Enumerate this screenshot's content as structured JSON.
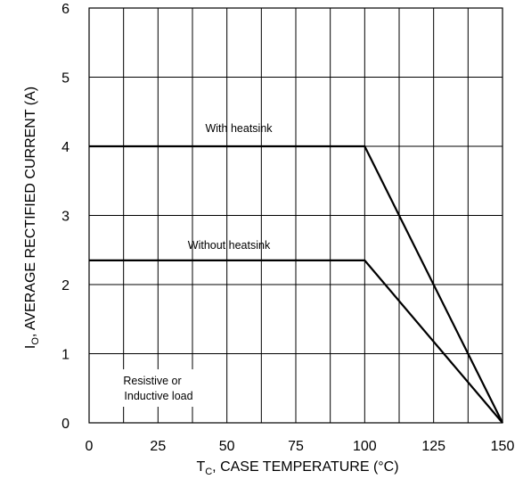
{
  "chart_data": {
    "type": "line",
    "xlim": [
      0,
      150
    ],
    "ylim": [
      0,
      6
    ],
    "x_ticks": [
      "0",
      "25",
      "50",
      "75",
      "100",
      "125",
      "150"
    ],
    "y_ticks": [
      "0",
      "1",
      "2",
      "3",
      "4",
      "5",
      "6"
    ],
    "grid": true,
    "xlabel": {
      "main": "T",
      "sub": "C",
      "rest": ", CASE TEMPERATURE (°C)"
    },
    "ylabel": {
      "main": "I",
      "sub": "O",
      "rest": ", AVERAGE RECTIFIED CURRENT (A)"
    },
    "series": [
      {
        "name": "With heatsink",
        "x": [
          0,
          100,
          150
        ],
        "y": [
          4.0,
          4.0,
          0
        ]
      },
      {
        "name": "Without heatsink",
        "x": [
          0,
          100,
          150
        ],
        "y": [
          2.35,
          2.35,
          0
        ]
      }
    ],
    "annotations": {
      "load_line1": "Resistive or",
      "load_line2": "Inductive load"
    }
  }
}
